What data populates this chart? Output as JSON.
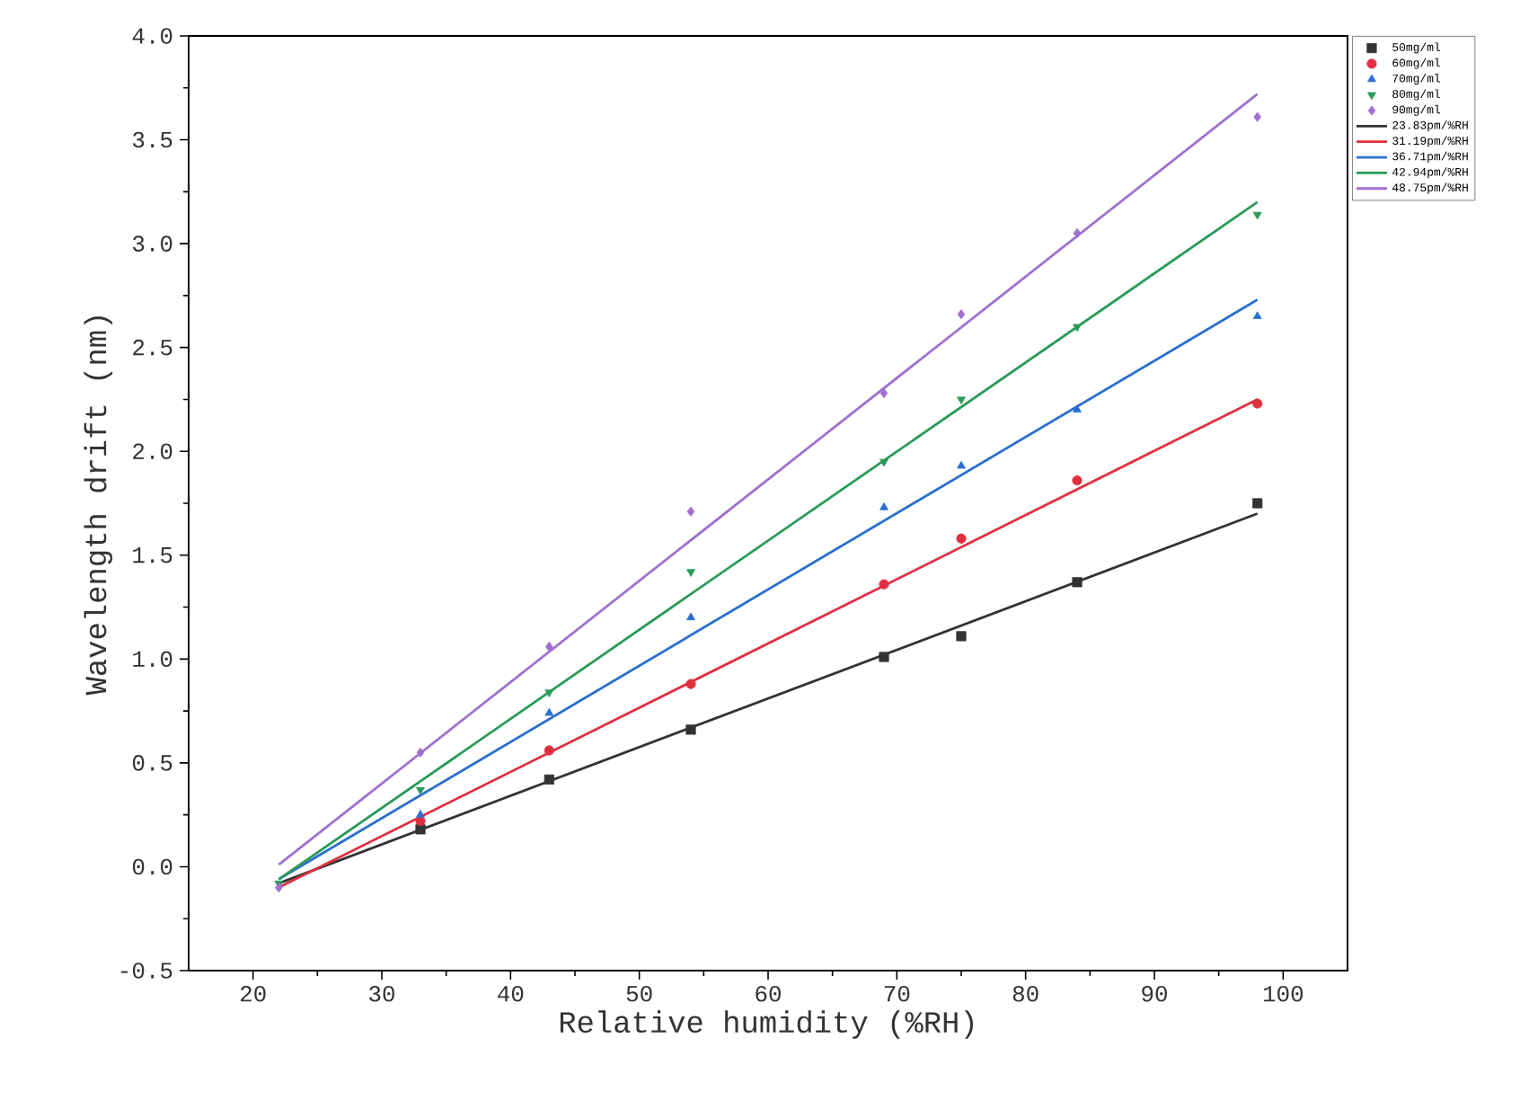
{
  "chart_data": {
    "type": "scatter",
    "xlabel": "Relative humidity (%RH)",
    "ylabel": "Wavelength drift (nm)",
    "xlim": [
      15,
      105
    ],
    "xticks": [
      20,
      30,
      40,
      50,
      60,
      70,
      80,
      90,
      100
    ],
    "ylim": [
      -0.5,
      4.0
    ],
    "yticks": [
      -0.5,
      {
        "value": 0,
        "label": "0.0"
      },
      0.5,
      {
        "value": 1,
        "label": "1.0"
      },
      1.5,
      {
        "value": 2,
        "label": "2.0"
      },
      2.5,
      {
        "value": 3,
        "label": "3.0"
      },
      3.5,
      {
        "value": 4,
        "label": "4.0"
      }
    ],
    "legend": "top right",
    "grid": false,
    "series": [
      {
        "name": "50mg/ml",
        "type": "scatter",
        "marker": "square",
        "color": "#333333",
        "x": [
          33,
          43,
          54,
          69,
          75,
          84,
          98
        ],
        "values": [
          0.18,
          0.42,
          0.66,
          1.01,
          1.11,
          1.37,
          1.75
        ]
      },
      {
        "name": "60mg/ml",
        "type": "scatter",
        "marker": "circle",
        "color": "#e03040",
        "x": [
          33,
          43,
          54,
          69,
          75,
          84,
          98
        ],
        "values": [
          0.22,
          0.56,
          0.88,
          1.36,
          1.58,
          1.86,
          2.23
        ]
      },
      {
        "name": "70mg/ml",
        "type": "scatter",
        "marker": "triangle",
        "color": "#2a6fd0",
        "x": [
          33,
          43,
          54,
          69,
          75,
          84,
          98
        ],
        "values": [
          0.25,
          0.74,
          1.2,
          1.73,
          1.93,
          2.2,
          2.65
        ]
      },
      {
        "name": "80mg/ml",
        "type": "scatter",
        "marker": "triangle-down",
        "color": "#2a9a5a",
        "x": [
          22,
          33,
          43,
          54,
          69,
          75,
          84,
          98
        ],
        "values": [
          -0.08,
          0.37,
          0.84,
          1.42,
          1.95,
          2.25,
          2.6,
          3.14
        ]
      },
      {
        "name": "90mg/ml",
        "type": "scatter",
        "marker": "diamond",
        "color": "#a070d0",
        "x": [
          22,
          33,
          43,
          54,
          69,
          75,
          84,
          98
        ],
        "values": [
          -0.1,
          0.55,
          1.06,
          1.71,
          2.28,
          2.66,
          3.05,
          3.61
        ]
      },
      {
        "name": "23.83pm/%RH",
        "type": "line",
        "marker": "none",
        "line_style": "solid",
        "color": "#333333",
        "x": [
          22,
          98
        ],
        "values": [
          -0.08,
          1.7
        ]
      },
      {
        "name": "31.19pm/%RH",
        "type": "line",
        "marker": "none",
        "line_style": "solid",
        "color": "#e03040",
        "x": [
          22,
          98
        ],
        "values": [
          -0.1,
          2.25
        ]
      },
      {
        "name": "36.71pm/%RH",
        "type": "line",
        "marker": "none",
        "line_style": "solid",
        "color": "#2a6fd0",
        "x": [
          22,
          98
        ],
        "values": [
          -0.06,
          2.73
        ]
      },
      {
        "name": "42.94pm/%RH",
        "type": "line",
        "marker": "none",
        "line_style": "solid",
        "color": "#2a9a5a",
        "x": [
          22,
          98
        ],
        "values": [
          -0.06,
          3.2
        ]
      },
      {
        "name": "48.75pm/%RH",
        "type": "line",
        "marker": "none",
        "line_style": "solid",
        "color": "#a070d0",
        "x": [
          22,
          98
        ],
        "values": [
          0.01,
          3.72
        ]
      }
    ]
  }
}
